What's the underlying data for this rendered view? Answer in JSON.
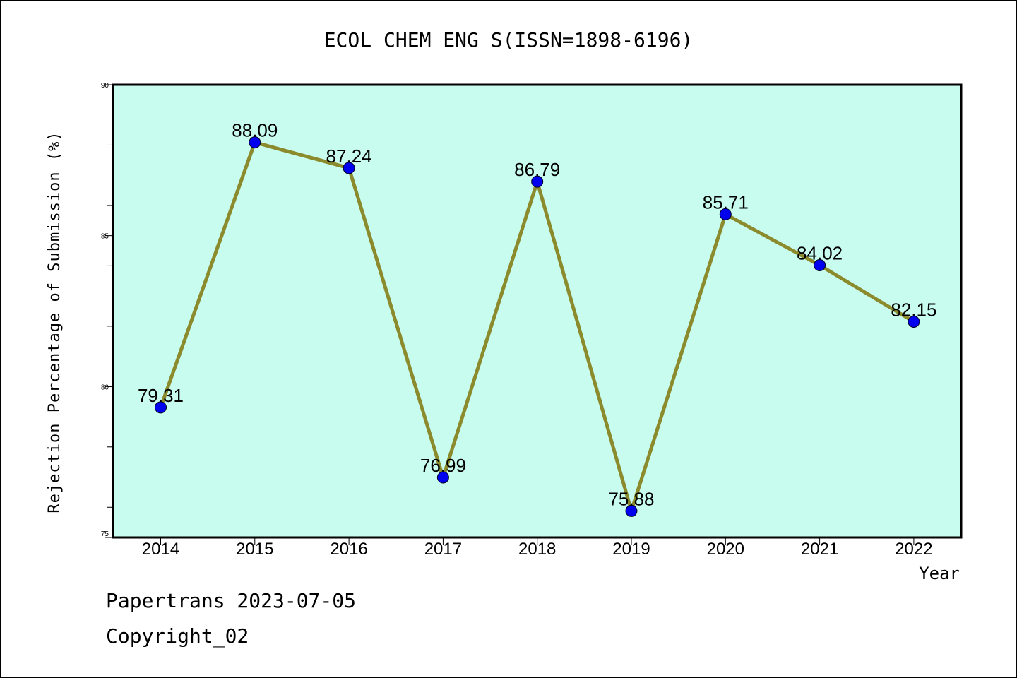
{
  "chart_data": {
    "type": "line",
    "title": "ECOL CHEM ENG S(ISSN=1898-6196)",
    "xlabel": "Year",
    "ylabel": "Rejection Percentage of Submission (%)",
    "categories": [
      "2014",
      "2015",
      "2016",
      "2017",
      "2018",
      "2019",
      "2020",
      "2021",
      "2022"
    ],
    "series": [
      {
        "values": [
          79.31,
          88.09,
          87.24,
          76.99,
          86.79,
          75.88,
          85.71,
          84.02,
          82.15
        ],
        "labels": [
          "79.31",
          "88.09",
          "87.24",
          "76.99",
          "86.79",
          "75.88",
          "85.71",
          "84.02",
          "82.15"
        ],
        "line_color": "#8B8B2E",
        "marker_color": "#0000EE"
      }
    ],
    "ylim": [
      75,
      90
    ],
    "yticks": [
      75,
      80,
      85,
      90
    ],
    "ytick_labels": [
      "75",
      "80",
      "85",
      "90"
    ],
    "grid": false,
    "plot_background": "#C8FCEE"
  },
  "footer": {
    "line1": "Papertrans 2023-07-05",
    "line2": "Copyright_02"
  }
}
